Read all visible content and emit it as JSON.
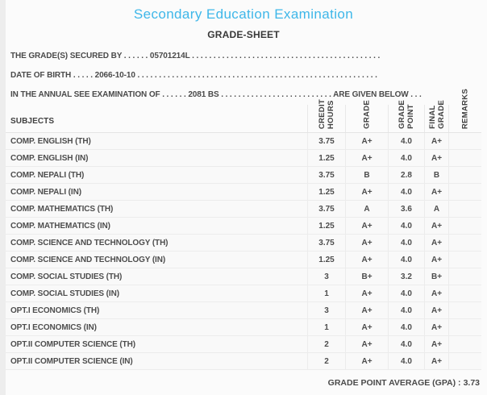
{
  "page": {
    "title": "Secondary Education Examination",
    "subtitle": "GRADE-SHEET"
  },
  "colors": {
    "title_accent": "#3eb7e9",
    "text": "#4a4a4a",
    "page_background": "#fbfbfb",
    "row_background": "#f9f9f9",
    "separator": "#ececec"
  },
  "intro": {
    "candidate_id": "05701214L",
    "date_of_birth": "2066-10-10",
    "exam_year": "2081 BS",
    "line1": "THE GRADE(S) SECURED BY . . . . . . 05701214L . . . . . . . . . . . . . . . . . . . . . . . . . . . . . . . . . . . . . . . . . . . .",
    "line2": "DATE OF BIRTH . . . . . 2066-10-10 . . . . . . . . . . . . . . . . . . . . . . . . . . . . . . . . . . . . . . . . . . . . . . . . . . . . . . . .",
    "line3": "IN THE ANNUAL SEE EXAMINATION OF . . . . . . 2081 BS . . . . . . . . . . . . . . . . . . . . . . . . . . ARE GIVEN BELOW . . ."
  },
  "table": {
    "header": {
      "subjects": "SUBJECTS",
      "credit_hours": "CREDIT\nHOURS",
      "grade": "GRADE",
      "grade_point": "GRADE\nPOINT",
      "final_grade": "FINAL\nGRADE",
      "remarks": "REMARKS"
    },
    "rows": [
      {
        "subject": "COMP. ENGLISH (TH)",
        "credit_hours": "3.75",
        "grade": "A+",
        "grade_point": "4.0",
        "final_grade": "A+",
        "remarks": ""
      },
      {
        "subject": "COMP. ENGLISH (IN)",
        "credit_hours": "1.25",
        "grade": "A+",
        "grade_point": "4.0",
        "final_grade": "A+",
        "remarks": ""
      },
      {
        "subject": "COMP. NEPALI (TH)",
        "credit_hours": "3.75",
        "grade": "B",
        "grade_point": "2.8",
        "final_grade": "B",
        "remarks": ""
      },
      {
        "subject": "COMP. NEPALI (IN)",
        "credit_hours": "1.25",
        "grade": "A+",
        "grade_point": "4.0",
        "final_grade": "A+",
        "remarks": ""
      },
      {
        "subject": "COMP. MATHEMATICS (TH)",
        "credit_hours": "3.75",
        "grade": "A",
        "grade_point": "3.6",
        "final_grade": "A",
        "remarks": ""
      },
      {
        "subject": "COMP. MATHEMATICS (IN)",
        "credit_hours": "1.25",
        "grade": "A+",
        "grade_point": "4.0",
        "final_grade": "A+",
        "remarks": ""
      },
      {
        "subject": "COMP. SCIENCE AND TECHNOLOGY (TH)",
        "credit_hours": "3.75",
        "grade": "A+",
        "grade_point": "4.0",
        "final_grade": "A+",
        "remarks": ""
      },
      {
        "subject": "COMP. SCIENCE AND TECHNOLOGY (IN)",
        "credit_hours": "1.25",
        "grade": "A+",
        "grade_point": "4.0",
        "final_grade": "A+",
        "remarks": ""
      },
      {
        "subject": "COMP. SOCIAL STUDIES (TH)",
        "credit_hours": "3",
        "grade": "B+",
        "grade_point": "3.2",
        "final_grade": "B+",
        "remarks": ""
      },
      {
        "subject": "COMP. SOCIAL STUDIES (IN)",
        "credit_hours": "1",
        "grade": "A+",
        "grade_point": "4.0",
        "final_grade": "A+",
        "remarks": ""
      },
      {
        "subject": "OPT.I ECONOMICS (TH)",
        "credit_hours": "3",
        "grade": "A+",
        "grade_point": "4.0",
        "final_grade": "A+",
        "remarks": ""
      },
      {
        "subject": "OPT.I ECONOMICS (IN)",
        "credit_hours": "1",
        "grade": "A+",
        "grade_point": "4.0",
        "final_grade": "A+",
        "remarks": ""
      },
      {
        "subject": "OPT.II COMPUTER SCIENCE (TH)",
        "credit_hours": "2",
        "grade": "A+",
        "grade_point": "4.0",
        "final_grade": "A+",
        "remarks": ""
      },
      {
        "subject": "OPT.II COMPUTER SCIENCE (IN)",
        "credit_hours": "2",
        "grade": "A+",
        "grade_point": "4.0",
        "final_grade": "A+",
        "remarks": ""
      }
    ]
  },
  "footer": {
    "gpa_label": "GRADE POINT AVERAGE (GPA) :",
    "gpa_value": "3.73"
  }
}
